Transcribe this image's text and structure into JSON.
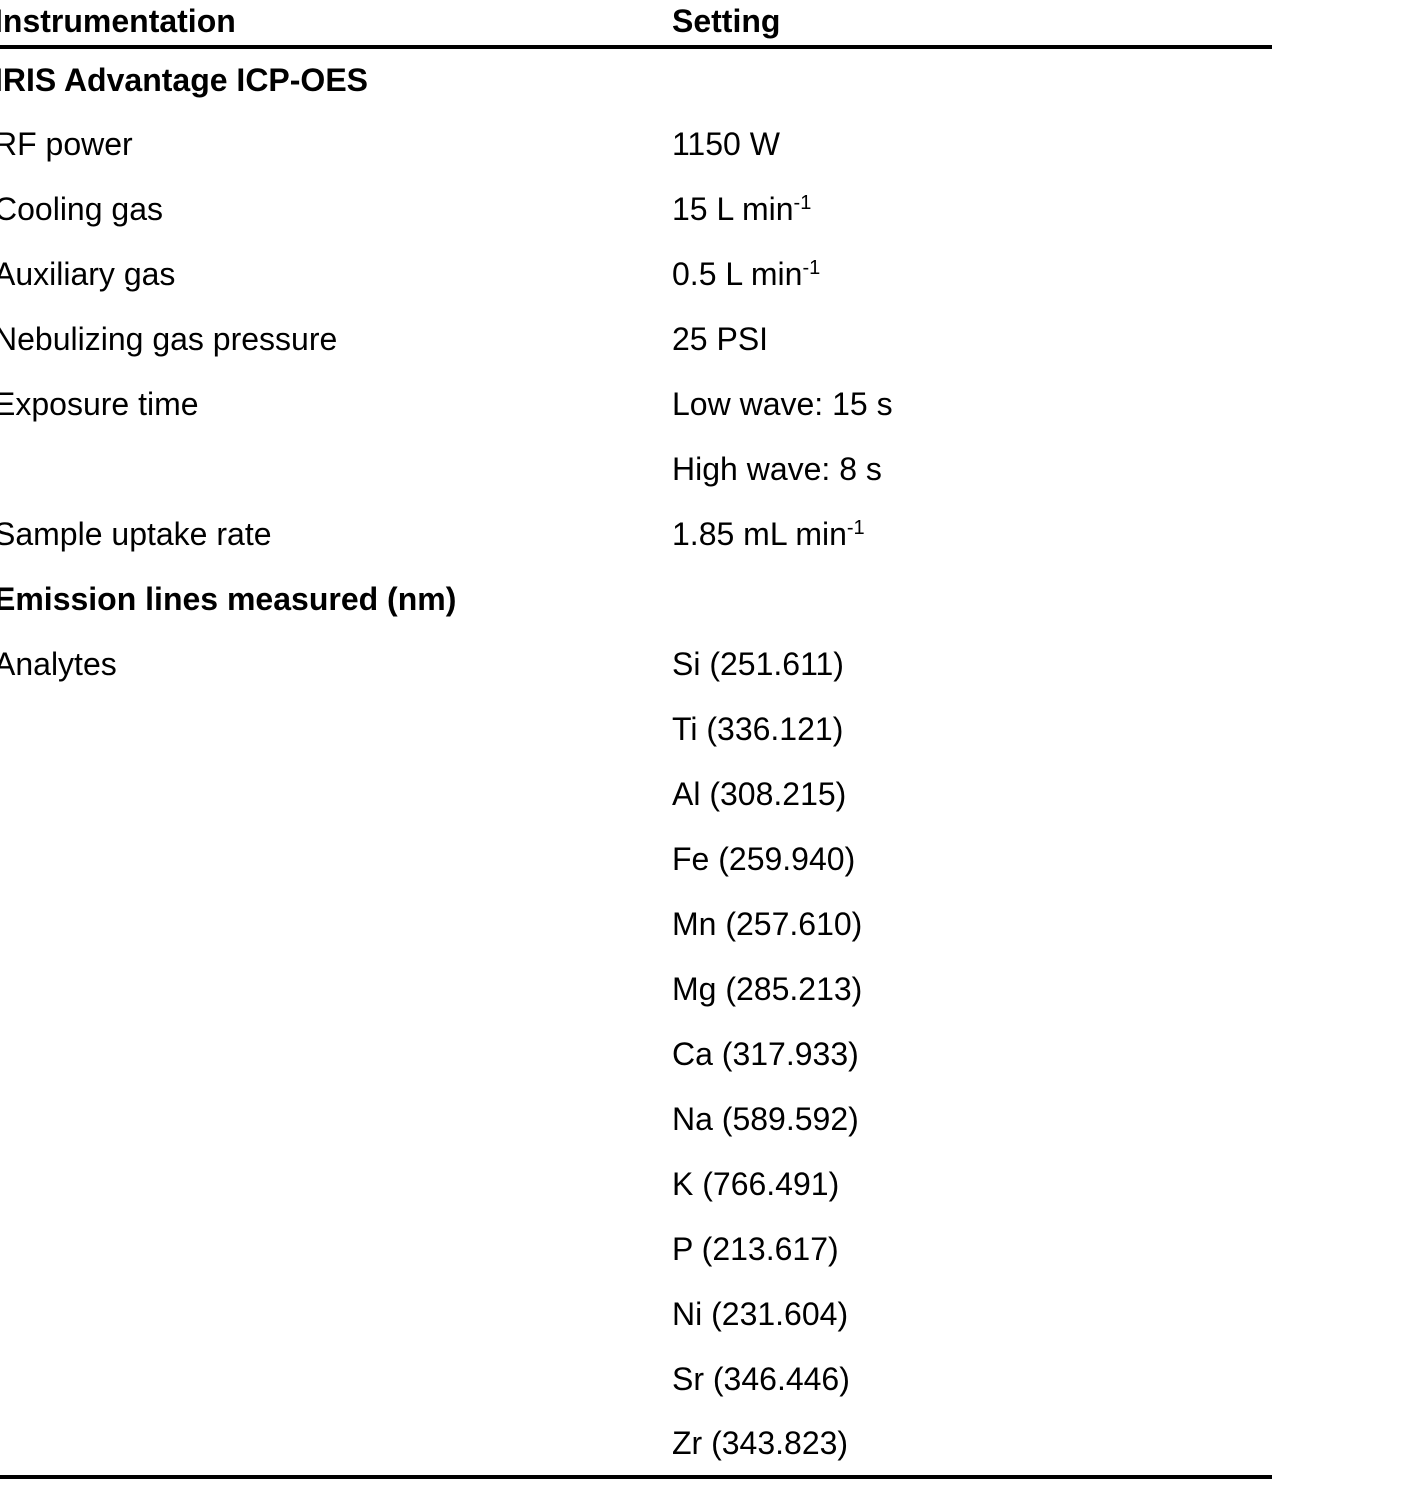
{
  "page": {
    "background_color": "#ffffff",
    "text_color": "#000000",
    "rule_color": "#000000"
  },
  "table": {
    "header": {
      "col1": "Instrumentation",
      "col2": "Setting"
    },
    "rows": [
      {
        "label": "IRIS Advantage ICP-OES",
        "value": ""
      },
      {
        "label": "RF power",
        "value": "1150 W"
      },
      {
        "label": "Cooling gas",
        "value": "15 L min",
        "sup": "-1"
      },
      {
        "label": "Auxiliary gas",
        "value": "0.5 L min",
        "sup": "-1"
      },
      {
        "label": "Nebulizing gas pressure",
        "value": "25 PSI"
      },
      {
        "label": "Exposure time",
        "value": "Low wave: 15 s"
      },
      {
        "label": "",
        "value": "High wave: 8 s"
      },
      {
        "label": "Sample uptake rate",
        "value": "1.85 mL min",
        "sup": "-1"
      },
      {
        "label": "Emission lines measured (nm)",
        "value": ""
      },
      {
        "label": "Analytes",
        "value": "Si (251.611)"
      },
      {
        "label": "",
        "value": "Ti (336.121)"
      },
      {
        "label": "",
        "value": "Al (308.215)"
      },
      {
        "label": "",
        "value": "Fe (259.940)"
      },
      {
        "label": "",
        "value": "Mn (257.610)"
      },
      {
        "label": "",
        "value": "Mg (285.213)"
      },
      {
        "label": "",
        "value": "Ca (317.933)"
      },
      {
        "label": "",
        "value": "Na (589.592)"
      },
      {
        "label": "",
        "value": "K (766.491)"
      },
      {
        "label": "",
        "value": "P (213.617)"
      },
      {
        "label": "",
        "value": "Ni (231.604)"
      },
      {
        "label": "",
        "value": "Sr (346.446)"
      },
      {
        "label": "",
        "value": "Zr (343.823)"
      }
    ]
  }
}
